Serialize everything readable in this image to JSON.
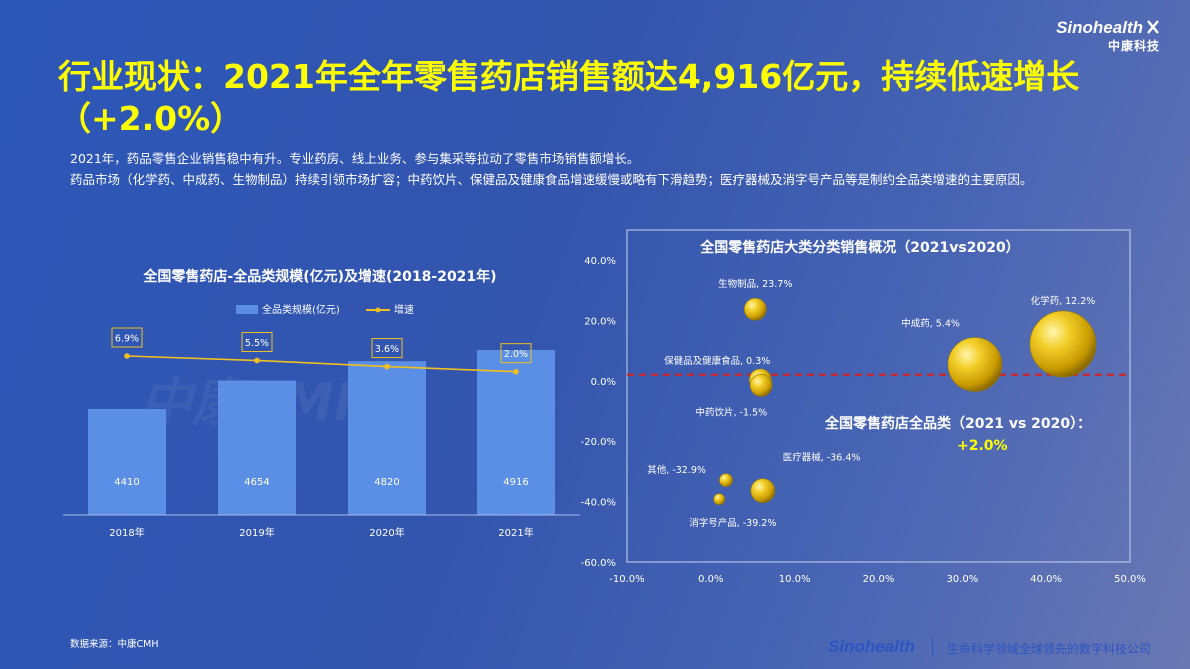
{
  "logo": {
    "name": "Sinohealth",
    "cn": "中康科技"
  },
  "headline": "行业现状：2021年全年零售药店销售额达4,916亿元，持续低速增长（+2.0%）",
  "description": [
    "2021年，药品零售企业销售稳中有升。专业药房、线上业务、参与集采等拉动了零售市场销售额增长。",
    "药品市场（化学药、中成药、生物制品）持续引领市场扩容；中药饮片、保健品及健康食品增速缓慢或略有下滑趋势；医疗器械及消字号产品等是制约全品类增速的主要原因。"
  ],
  "watermark": "中康CMH",
  "chart_data": [
    {
      "type": "bar",
      "title": "全国零售药店-全品类规模(亿元)及增速(2018-2021年)",
      "categories": [
        "2018年",
        "2019年",
        "2020年",
        "2021年"
      ],
      "series": [
        {
          "name": "全品类规模(亿元)",
          "type": "bar",
          "values": [
            4410,
            4654,
            4820,
            4916
          ],
          "color": "#5b8fe6"
        },
        {
          "name": "增速",
          "type": "line",
          "values": [
            6.9,
            5.5,
            3.6,
            2.0
          ],
          "labels": [
            "6.9%",
            "5.5%",
            "3.6%",
            "2.0%"
          ],
          "color": "#f0c020"
        }
      ]
    },
    {
      "type": "scatter",
      "title": "全国零售药店大类分类销售概况（2021vs2020）",
      "xlim": [
        -10,
        50
      ],
      "ylim": [
        -60,
        40
      ],
      "x_ticks": [
        "-10.0%",
        "0.0%",
        "10.0%",
        "20.0%",
        "30.0%",
        "40.0%",
        "50.0%"
      ],
      "y_ticks": [
        "40.0%",
        "20.0%",
        "0.0%",
        "-20.0%",
        "-40.0%",
        "-60.0%"
      ],
      "points": [
        {
          "label": "生物制品, 23.7%",
          "x": 5.3,
          "y": 23.7
        },
        {
          "label": "化学药, 12.2%",
          "x": 42.0,
          "y": 12.2
        },
        {
          "label": "中成药, 5.4%",
          "x": 31.5,
          "y": 5.4
        },
        {
          "label": "保健品及健康食品, 0.3%",
          "x": 5.9,
          "y": 0.3
        },
        {
          "label": "中药饮片, -1.5%",
          "x": 6.0,
          "y": -1.5
        },
        {
          "label": "其他, -32.9%",
          "x": 1.8,
          "y": -32.9
        },
        {
          "label": "医疗器械, -36.4%",
          "x": 6.2,
          "y": -36.4
        },
        {
          "label": "消字号产品, -39.2%",
          "x": 1.0,
          "y": -39.2
        }
      ],
      "reference_line": 2.0,
      "annotation_title": "全国零售药店全品类（2021 vs 2020）：",
      "annotation_value": "+2.0%"
    }
  ],
  "footer": {
    "source": "数据来源：中康CMH",
    "brand": "Sinohealth",
    "slogan": "生命科学领域全球领先的数字科技公司"
  }
}
